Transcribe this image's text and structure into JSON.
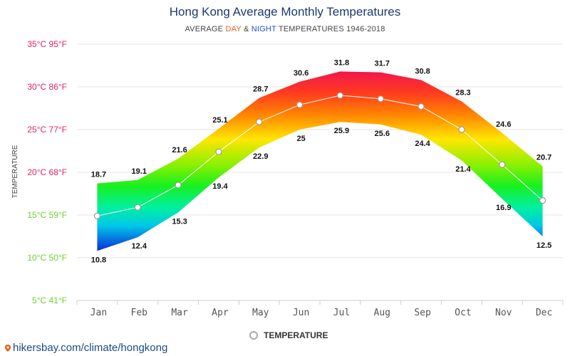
{
  "header": {
    "title": "Hong Kong Average Monthly Temperatures",
    "subtitle_prefix": "AVERAGE ",
    "subtitle_day": "DAY",
    "subtitle_and": " & ",
    "subtitle_night": "NIGHT",
    "subtitle_suffix": " TEMPERATURES 1946-2018"
  },
  "legend": {
    "label": "TEMPERATURE"
  },
  "footer": {
    "link": "hikersbay.com/climate/hongkong"
  },
  "chart_data": {
    "type": "area",
    "title": "Hong Kong Average Monthly Temperatures",
    "subtitle": "AVERAGE DAY & NIGHT TEMPERATURES 1946-2018",
    "ylabel": "TEMPERATURE",
    "ylim": [
      5,
      35
    ],
    "yticks": [
      {
        "value": 35,
        "label": "35°C 95°F"
      },
      {
        "value": 30,
        "label": "30°C 86°F"
      },
      {
        "value": 25,
        "label": "25°C 77°F"
      },
      {
        "value": 20,
        "label": "20°C 68°F"
      },
      {
        "value": 15,
        "label": "15°C 59°F"
      },
      {
        "value": 10,
        "label": "10°C 50°F"
      },
      {
        "value": 5,
        "label": "5°C 41°F"
      }
    ],
    "categories": [
      "Jan",
      "Feb",
      "Mar",
      "Apr",
      "May",
      "Jun",
      "Jul",
      "Aug",
      "Sep",
      "Oct",
      "Nov",
      "Dec"
    ],
    "series": [
      {
        "name": "DAY",
        "values": [
          18.7,
          19.1,
          21.6,
          25.1,
          28.7,
          30.6,
          31.8,
          31.7,
          30.8,
          28.3,
          24.6,
          20.7
        ]
      },
      {
        "name": "NIGHT",
        "values": [
          10.8,
          12.4,
          15.3,
          19.4,
          22.9,
          25,
          25.9,
          25.6,
          24.4,
          21.4,
          16.9,
          12.5
        ]
      },
      {
        "name": "TEMPERATURE",
        "values": [
          14.9,
          15.9,
          18.5,
          22.4,
          25.9,
          27.9,
          29,
          28.6,
          27.7,
          25,
          20.9,
          16.7
        ]
      }
    ],
    "grid": true,
    "legend_position": "bottom-center"
  },
  "colors": {
    "tick_hot": "#e0245e",
    "tick_warm": "#6fcf2f",
    "tick_cool": "#7ccf3a",
    "mean_line": "#ffffff",
    "marker_stroke": "#999999"
  }
}
